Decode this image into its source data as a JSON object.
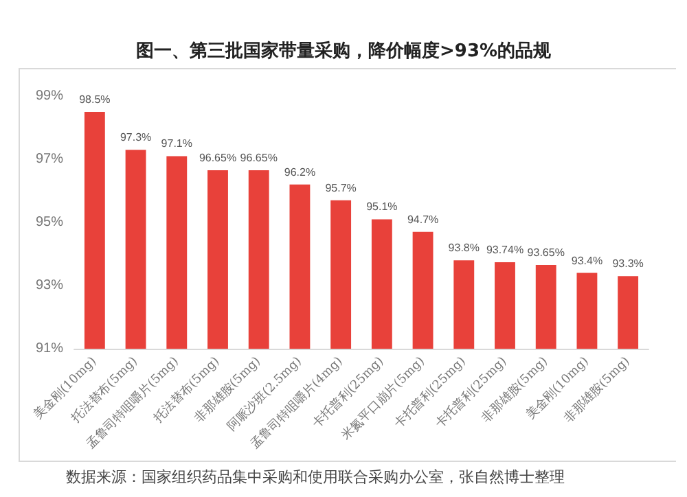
{
  "chart_data": {
    "type": "bar",
    "title": "图一、第三批国家带量采购，降价幅度>93%的品规",
    "categories": [
      "美金刚(10mg)",
      "托法替布(5mg)",
      "孟鲁司特咀嚼片(5mg)",
      "托法替布(5mg)",
      "非那雄胺(5mg)",
      "阿哌沙班(2.5mg)",
      "孟鲁司特咀嚼片(4mg)",
      "卡托普利(25mg)",
      "米氮平口崩片(5mg)",
      "卡托普利(25mg)",
      "卡托普利(25mg)",
      "非那雄胺(5mg)",
      "美金刚(10mg)",
      "非那雄胺(5mg)"
    ],
    "values": [
      98.5,
      97.3,
      97.1,
      96.65,
      96.65,
      96.2,
      95.7,
      95.1,
      94.7,
      93.8,
      93.74,
      93.65,
      93.4,
      93.3
    ],
    "value_labels": [
      "98.5%",
      "97.3%",
      "97.1%",
      "96.65%",
      "96.65%",
      "96.2%",
      "95.7%",
      "95.1%",
      "94.7%",
      "93.8%",
      "93.74%",
      "93.65%",
      "93.4%",
      "93.3%"
    ],
    "color": "#e8413a",
    "ylim": [
      91,
      99
    ],
    "yticks": [
      {
        "value": 91,
        "label": "91%"
      },
      {
        "value": 93,
        "label": "93%"
      },
      {
        "value": 95,
        "label": "95%"
      },
      {
        "value": 97,
        "label": "97%"
      },
      {
        "value": 99,
        "label": "99%"
      }
    ],
    "grid": false,
    "annotations": [
      "数据来源：国家组织药品集中采购和使用联合采购办公室，张自然博士整理"
    ]
  }
}
